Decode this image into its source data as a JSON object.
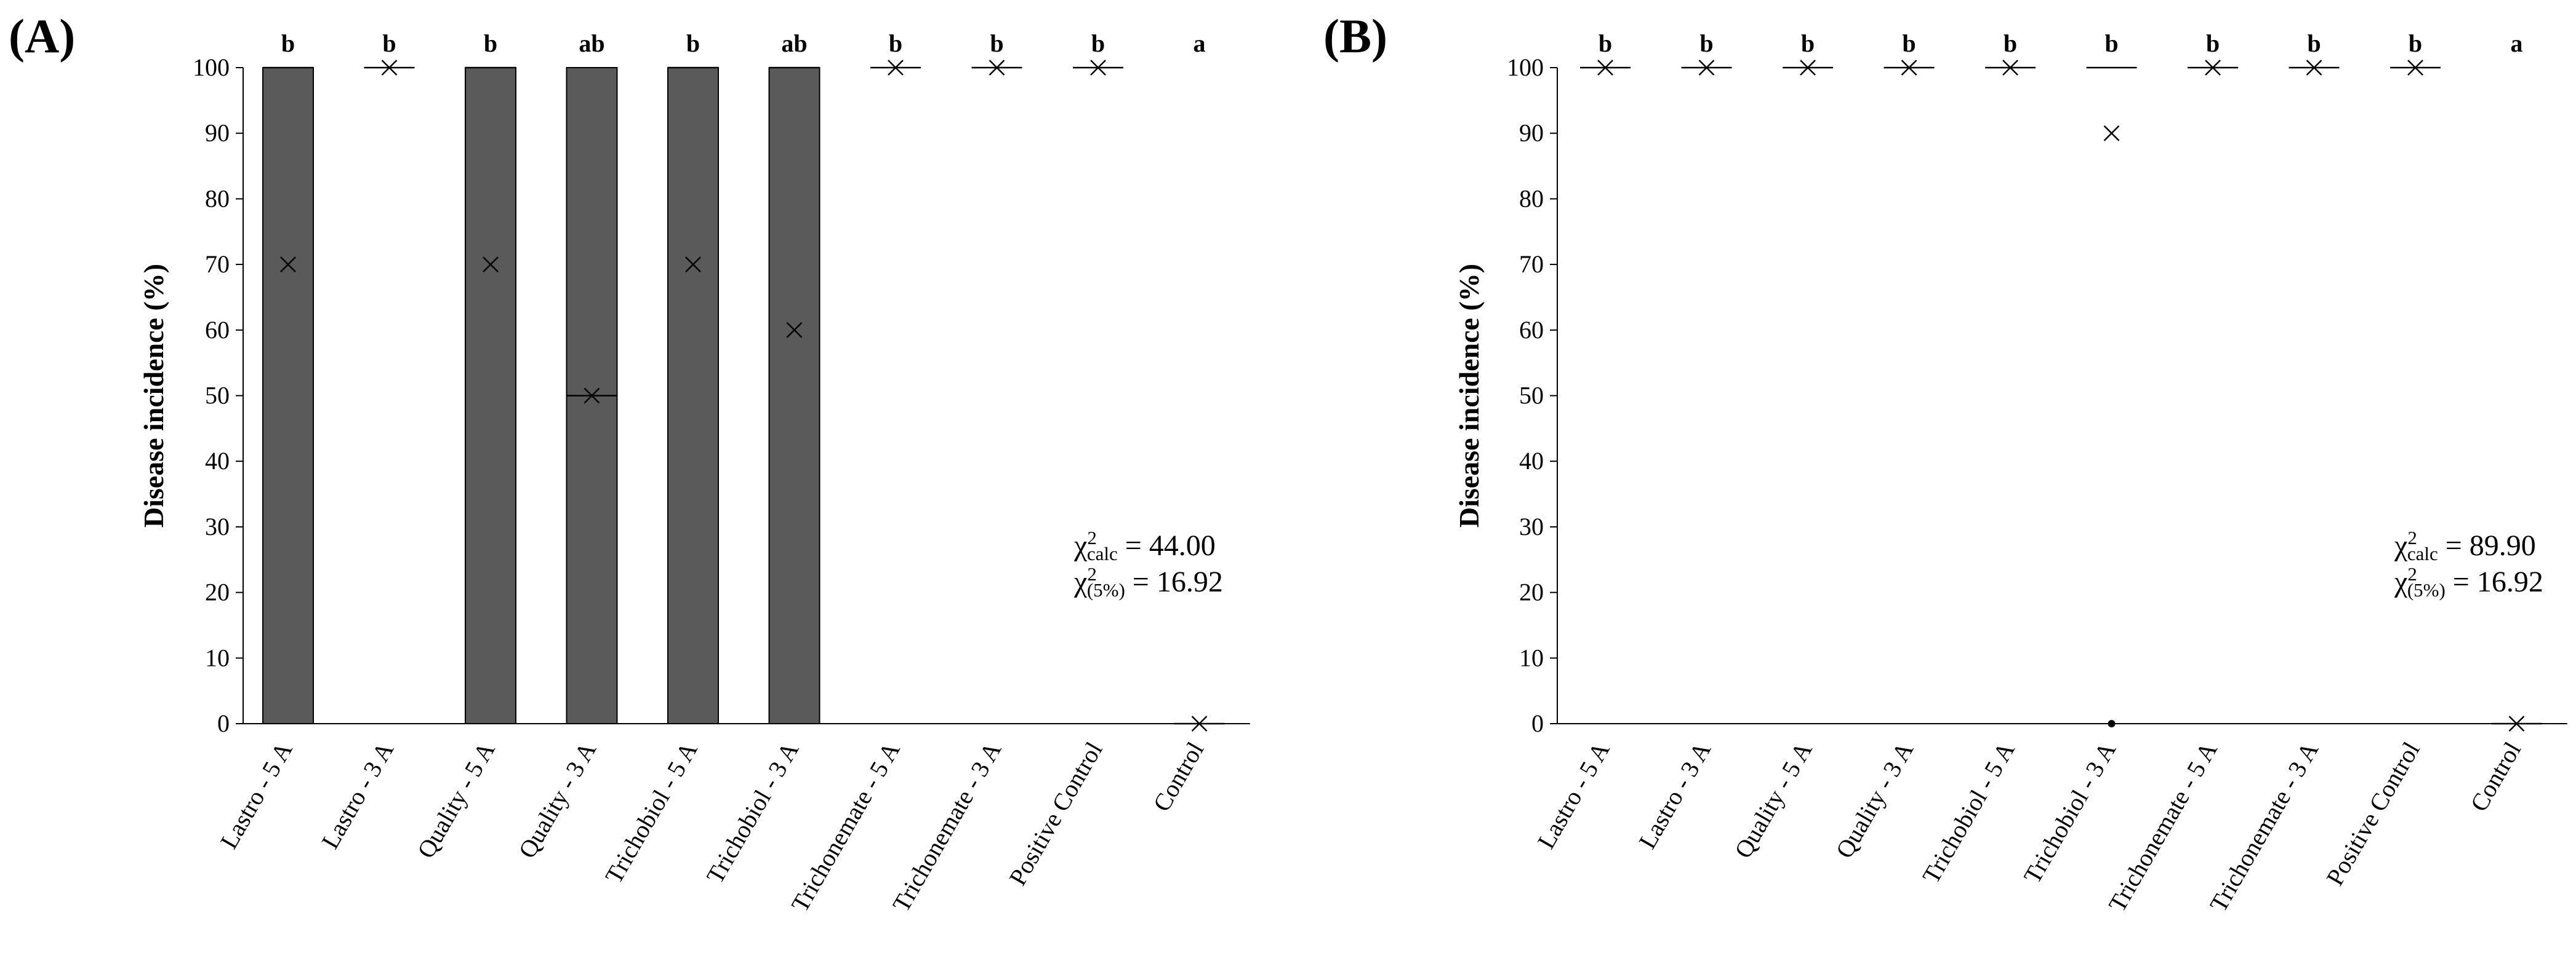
{
  "chart_data": [
    {
      "type": "box",
      "panel": "(A)",
      "ylabel": "Disease incidence (%)",
      "ylim": [
        0,
        100
      ],
      "yticks": [
        0,
        10,
        20,
        30,
        40,
        50,
        60,
        70,
        80,
        90,
        100
      ],
      "categories": [
        "Lastro - 5 A",
        "Lastro - 3 A",
        "Quality - 5 A",
        "Quality - 3 A",
        "Trichobiol - 5 A",
        "Trichobiol - 3 A",
        "Trichonemate - 5 A",
        "Trichonemate - 3 A",
        "Positive Control",
        "Control"
      ],
      "letters": [
        "b",
        "b",
        "b",
        "ab",
        "b",
        "ab",
        "b",
        "b",
        "b",
        "a"
      ],
      "boxes": [
        {
          "q1": 0,
          "median": 100,
          "q3": 100,
          "mean": 70
        },
        {
          "q1": 100,
          "median": 100,
          "q3": 100,
          "mean": 100
        },
        {
          "q1": 0,
          "median": 100,
          "q3": 100,
          "mean": 70
        },
        {
          "q1": 0,
          "median": 50,
          "q3": 100,
          "mean": 50
        },
        {
          "q1": 0,
          "median": 100,
          "q3": 100,
          "mean": 70
        },
        {
          "q1": 0,
          "median": 100,
          "q3": 100,
          "mean": 60
        },
        {
          "q1": 100,
          "median": 100,
          "q3": 100,
          "mean": 100
        },
        {
          "q1": 100,
          "median": 100,
          "q3": 100,
          "mean": 100
        },
        {
          "q1": 100,
          "median": 100,
          "q3": 100,
          "mean": 100
        },
        {
          "q1": 0,
          "median": 0,
          "q3": 0,
          "mean": 0
        }
      ],
      "outliers": [],
      "stats": {
        "calc_prefix": "χ",
        "calc_sup": "2",
        "calc_sub": "calc",
        "calc_value": " = 44.00",
        "crit_prefix": "χ",
        "crit_sup": "2",
        "crit_sub": "(5%)",
        "crit_value": " = 16.92"
      },
      "box_color": "#5a5a5a",
      "grid": false
    },
    {
      "type": "box",
      "panel": "(B)",
      "ylabel": "Disease incidence (%)",
      "ylim": [
        0,
        100
      ],
      "yticks": [
        0,
        10,
        20,
        30,
        40,
        50,
        60,
        70,
        80,
        90,
        100
      ],
      "categories": [
        "Lastro - 5 A",
        "Lastro - 3 A",
        "Quality - 5 A",
        "Quality - 3 A",
        "Trichobiol - 5 A",
        "Trichobiol - 3 A",
        "Trichonemate - 5 A",
        "Trichonemate - 3 A",
        "Positive Control",
        "Control"
      ],
      "letters": [
        "b",
        "b",
        "b",
        "b",
        "b",
        "b",
        "b",
        "b",
        "b",
        "a"
      ],
      "boxes": [
        {
          "q1": 100,
          "median": 100,
          "q3": 100,
          "mean": 100
        },
        {
          "q1": 100,
          "median": 100,
          "q3": 100,
          "mean": 100
        },
        {
          "q1": 100,
          "median": 100,
          "q3": 100,
          "mean": 100
        },
        {
          "q1": 100,
          "median": 100,
          "q3": 100,
          "mean": 100
        },
        {
          "q1": 100,
          "median": 100,
          "q3": 100,
          "mean": 100
        },
        {
          "q1": 100,
          "median": 100,
          "q3": 100,
          "mean": 90
        },
        {
          "q1": 100,
          "median": 100,
          "q3": 100,
          "mean": 100
        },
        {
          "q1": 100,
          "median": 100,
          "q3": 100,
          "mean": 100
        },
        {
          "q1": 100,
          "median": 100,
          "q3": 100,
          "mean": 100
        },
        {
          "q1": 0,
          "median": 0,
          "q3": 0,
          "mean": 0
        }
      ],
      "outliers": [
        {
          "category": "Trichobiol - 3 A",
          "value": 0
        }
      ],
      "stats": {
        "calc_prefix": "χ",
        "calc_sup": "2",
        "calc_sub": "calc",
        "calc_value": " = 89.90",
        "crit_prefix": "χ",
        "crit_sup": "2",
        "crit_sub": "(5%)",
        "crit_value": " = 16.92"
      },
      "box_color": "#5a5a5a",
      "grid": false
    }
  ]
}
